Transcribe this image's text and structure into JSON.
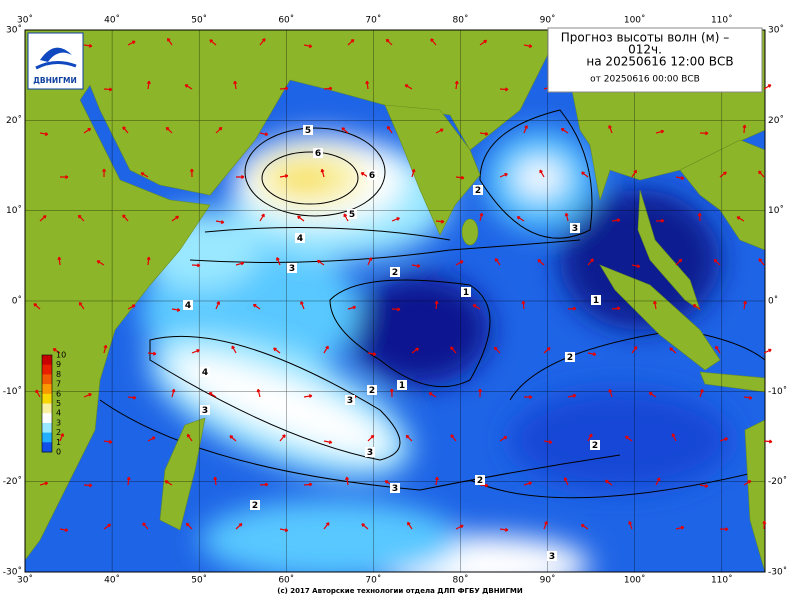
{
  "header": {
    "title_lines": [
      "Прогноз высоты волн (м) –",
      "012ч.",
      "на 20250616 12:00 ВСВ",
      "от 20250616 00:00 ВСВ"
    ]
  },
  "logo": {
    "label": "ДВНИГМИ"
  },
  "axes": {
    "lon_labels": [
      "30˚",
      "40˚",
      "50˚",
      "60˚",
      "70˚",
      "80˚",
      "90˚",
      "100˚",
      "110˚"
    ],
    "lat_labels": [
      "30˚",
      "20˚",
      "10˚",
      "0˚",
      "-10˚",
      "-20˚",
      "-30˚"
    ]
  },
  "colorbar": {
    "ticks": [
      10,
      9,
      8,
      7,
      6,
      5,
      4,
      3,
      2,
      1,
      0
    ],
    "colors": [
      "#c80000",
      "#e82000",
      "#f05a00",
      "#f89a00",
      "#f8d800",
      "#f8f0a0",
      "#ffffff",
      "#9ae8ff",
      "#20b0ff",
      "#1050e8",
      "#0a10a0"
    ]
  },
  "contour_labels": [
    "5",
    "6",
    "6",
    "5",
    "4",
    "3",
    "2",
    "1",
    "1",
    "2",
    "2",
    "3",
    "4",
    "4",
    "3",
    "2",
    "3",
    "3",
    "1",
    "2",
    "3",
    "2",
    "2",
    "3"
  ],
  "footer": "(c) 2017 Авторские технологии отдела ДЛП ФГБУ ДВНИГМИ"
}
